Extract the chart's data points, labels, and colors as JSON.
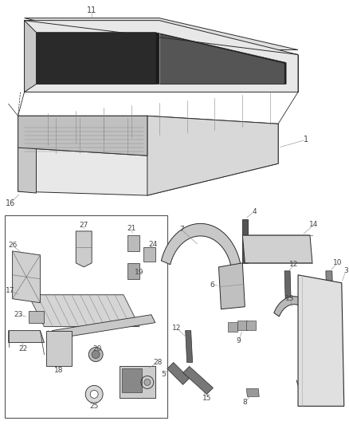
{
  "background_color": "#ffffff",
  "line_color": "#2a2a2a",
  "label_color": "#444444",
  "fig_width": 4.38,
  "fig_height": 5.33
}
